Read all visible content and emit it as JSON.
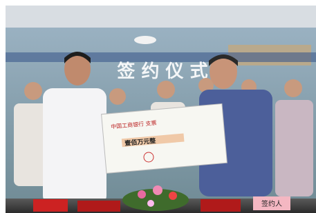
{
  "banner": {
    "title": "签 约 仪 式"
  },
  "cheque": {
    "bank": "中国工商银行 支票",
    "amount": "壹佰万元整"
  },
  "nameplate": {
    "label": "签约人"
  }
}
